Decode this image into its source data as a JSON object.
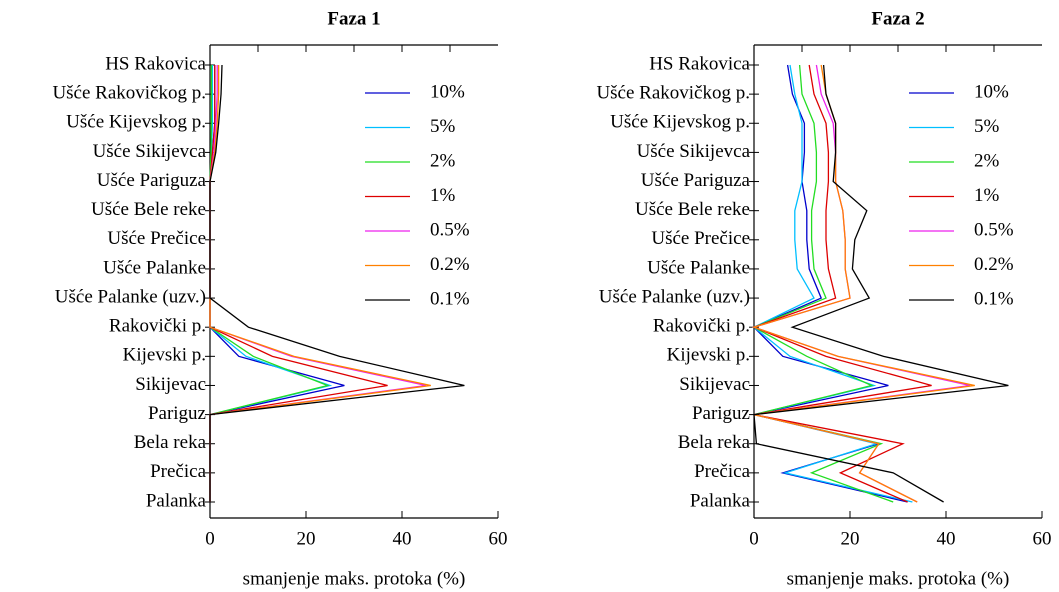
{
  "chart_data": [
    {
      "type": "line",
      "orientation": "horizontal",
      "title": "Faza 1",
      "xlabel": "smanjenje maks. protoka (%)",
      "categories": [
        "HS Rakovica",
        "Ušće Rakovičkog p.",
        "Ušće Kijevskog p.",
        "Ušće Sikijevca",
        "Ušće Pariguza",
        "Ušće Bele reke",
        "Ušće Prečice",
        "Ušće Palanke",
        "Ušće Palanke (uzv.)",
        "Rakovički p.",
        "Kijevski p.",
        "Sikijevac",
        "Pariguz",
        "Bela reka",
        "Prečica",
        "Palanka"
      ],
      "series": [
        {
          "name": "10%",
          "color": "#0000cc",
          "values": [
            1,
            1,
            1,
            0.5,
            0,
            0,
            0,
            0,
            0,
            0,
            6,
            28,
            0,
            0,
            0,
            0
          ]
        },
        {
          "name": "5%",
          "color": "#00bfff",
          "values": [
            0.5,
            0.5,
            0.5,
            0.3,
            0,
            0,
            0,
            0,
            0,
            0,
            7.5,
            25,
            0,
            0,
            0,
            0
          ]
        },
        {
          "name": "2%",
          "color": "#22dd22",
          "values": [
            0.3,
            0.3,
            0.3,
            0.2,
            0,
            0,
            0,
            0,
            0,
            0,
            9,
            24.5,
            0,
            0,
            0,
            0
          ]
        },
        {
          "name": "1%",
          "color": "#dd0000",
          "values": [
            1,
            1,
            1,
            0.5,
            0,
            0,
            0,
            0,
            0,
            0,
            13,
            37,
            0,
            0,
            0,
            0
          ]
        },
        {
          "name": "0.5%",
          "color": "#ee22ee",
          "values": [
            1.5,
            1.5,
            1.2,
            0.8,
            0,
            0,
            0,
            0,
            0,
            0,
            17,
            45,
            0,
            0,
            0,
            0
          ]
        },
        {
          "name": "0.2%",
          "color": "#ff8000",
          "values": [
            1.8,
            1.8,
            1.5,
            1,
            0,
            0,
            0,
            0,
            0,
            0,
            17.5,
            46,
            0,
            0,
            0,
            0
          ]
        },
        {
          "name": "0.1%",
          "color": "#000000",
          "values": [
            2.5,
            2.3,
            1.8,
            1.2,
            0,
            0,
            0,
            0,
            0,
            8,
            27,
            53,
            0,
            0,
            0,
            0
          ]
        }
      ],
      "xlim": [
        0,
        60
      ],
      "xticks": [
        0,
        20,
        40,
        60
      ],
      "x2ticks": [
        10,
        20,
        30,
        40,
        50
      ],
      "legend": "upper right"
    },
    {
      "type": "line",
      "orientation": "horizontal",
      "title": "Faza 2",
      "xlabel": "smanjenje maks. protoka (%)",
      "categories": [
        "HS Rakovica",
        "Ušće Rakovičkog p.",
        "Ušće Kijevskog p.",
        "Ušće Sikijevca",
        "Ušće Pariguza",
        "Ušće Bele reke",
        "Ušće Prečice",
        "Ušće Palanke",
        "Ušće Palanke (uzv.)",
        "Rakovički p.",
        "Kijevski p.",
        "Sikijevac",
        "Pariguz",
        "Bela reka",
        "Prečica",
        "Palanka"
      ],
      "series": [
        {
          "name": "10%",
          "color": "#0000cc",
          "values": [
            7,
            8,
            10.5,
            10.5,
            10,
            11,
            11,
            11.5,
            14,
            0,
            6,
            28,
            0,
            26,
            6,
            32
          ]
        },
        {
          "name": "5%",
          "color": "#00bfff",
          "values": [
            7.5,
            8.5,
            10,
            10,
            10,
            8.5,
            8.5,
            9,
            12.5,
            0,
            7.5,
            25,
            0,
            25.5,
            6.5,
            33
          ]
        },
        {
          "name": "2%",
          "color": "#22dd22",
          "values": [
            9.5,
            10,
            12.5,
            13,
            13,
            12,
            12,
            12.5,
            15,
            0,
            11,
            24.5,
            0,
            26.5,
            12,
            29
          ]
        },
        {
          "name": "1%",
          "color": "#dd0000",
          "values": [
            11.5,
            12.5,
            15,
            15.5,
            15.5,
            15,
            15,
            15.5,
            17,
            0,
            15,
            37,
            0,
            31,
            18,
            32
          ]
        },
        {
          "name": "0.5%",
          "color": "#ee22ee",
          "values": [
            13,
            14,
            16.5,
            17,
            17,
            18.5,
            19,
            19,
            20,
            0,
            17.5,
            45,
            0,
            26,
            22,
            34
          ]
        },
        {
          "name": "0.2%",
          "color": "#ff8000",
          "values": [
            14,
            15,
            17,
            17,
            17,
            18.5,
            19,
            19,
            20,
            0,
            17.5,
            46,
            0,
            26,
            22,
            34
          ]
        },
        {
          "name": "0.1%",
          "color": "#000000",
          "values": [
            14.5,
            15,
            17,
            17,
            16.5,
            23.5,
            21,
            20.5,
            24,
            8,
            27,
            53,
            0,
            0.5,
            29,
            39.5
          ]
        }
      ],
      "xlim": [
        0,
        60
      ],
      "xticks": [
        0,
        20,
        40,
        60
      ],
      "x2ticks": [
        10,
        20,
        30,
        40,
        50
      ],
      "legend": "upper right"
    }
  ]
}
